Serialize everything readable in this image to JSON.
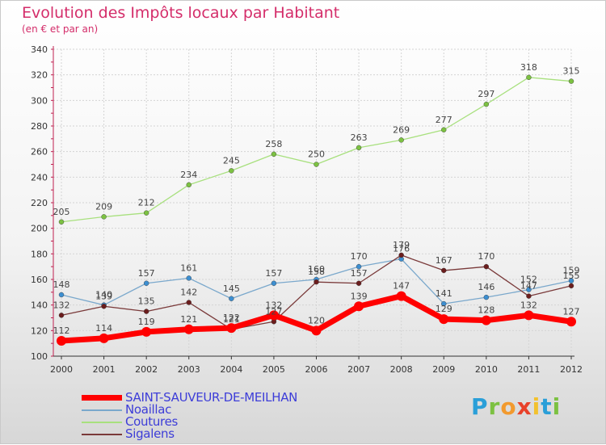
{
  "title": "Evolution des Impôts locaux par Habitant",
  "subtitle": "(en € et par an)",
  "logo": [
    "P",
    "r",
    "o",
    "x",
    "i",
    "t",
    "i"
  ],
  "logo_colors": [
    "#2a9fd8",
    "#7cc142",
    "#f29a2e",
    "#e8412a",
    "#f2c12e",
    "#2a9fd8",
    "#7cc142"
  ],
  "chart_data": {
    "type": "line",
    "title": "Evolution des Impôts locaux par Habitant",
    "subtitle": "(en € et par an)",
    "xlabel": "",
    "ylabel": "",
    "x": [
      "2000",
      "2001",
      "2002",
      "2003",
      "2004",
      "2005",
      "2006",
      "2007",
      "2008",
      "2009",
      "2010",
      "2011",
      "2012"
    ],
    "ylim": [
      100,
      340
    ],
    "yticks": [
      100,
      120,
      140,
      160,
      180,
      200,
      220,
      240,
      260,
      280,
      300,
      320,
      340
    ],
    "grid": true,
    "legend": "bottom-left",
    "series": [
      {
        "name": "SAINT-SAUVEUR-DE-MEILHAN",
        "color": "#ff0000",
        "marker": "#ff0000",
        "values": [
          112,
          114,
          119,
          121,
          122,
          132,
          120,
          139,
          147,
          129,
          128,
          132,
          127
        ],
        "labels": [
          "112",
          "114",
          "119",
          "121",
          "122",
          "132",
          "120",
          "139",
          "147",
          "129",
          "128",
          "132",
          "127"
        ]
      },
      {
        "name": "Noaillac",
        "color": "#7aa8cc",
        "marker": "#3d8fd1",
        "values": [
          148,
          140,
          157,
          161,
          145,
          157,
          160,
          170,
          176,
          141,
          146,
          152,
          159
        ],
        "labels": [
          "148",
          "140",
          "157",
          "161",
          "145",
          "157",
          "160",
          "170",
          "176",
          "141",
          "146",
          "152",
          "159"
        ]
      },
      {
        "name": "Coutures",
        "color": "#a8e07e",
        "marker": "#7cc142",
        "values": [
          205,
          209,
          212,
          234,
          245,
          258,
          250,
          263,
          269,
          277,
          297,
          318,
          315
        ],
        "labels": [
          "205",
          "209",
          "212",
          "234",
          "245",
          "258",
          "250",
          "263",
          "269",
          "277",
          "297",
          "318",
          "315"
        ]
      },
      {
        "name": "Sigalens",
        "color": "#7a3a3a",
        "marker": "#6b1d1d",
        "values": [
          132,
          139,
          135,
          142,
          121,
          127,
          158,
          157,
          179,
          167,
          170,
          147,
          155
        ],
        "labels": [
          "132",
          "139",
          "135",
          "142",
          "121",
          "127",
          "158",
          "157",
          "179",
          "167",
          "170",
          "147",
          "155"
        ]
      }
    ]
  }
}
